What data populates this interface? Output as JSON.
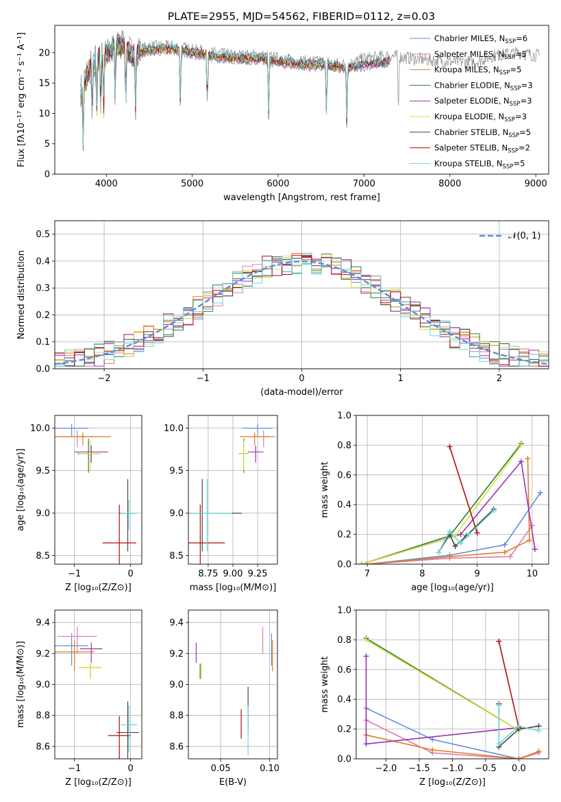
{
  "figure": {
    "title": "PLATE=2955, MJD=54562, FIBERID=0112, z=0.03"
  },
  "colors": {
    "chabrier_miles": "#5b8ddb",
    "salpeter_miles": "#e07aa5",
    "kroupa_miles": "#e07b22",
    "chabrier_elodie": "#2e7d32",
    "salpeter_elodie": "#9b30b0",
    "kroupa_elodie": "#d6e23a",
    "chabrier_stelib": "#444444",
    "salpeter_stelib": "#b00c0c",
    "kroupa_stelib": "#6fd4d8",
    "gauss": "#5b8ddb",
    "grid": "#b0b0b0"
  },
  "models": [
    {
      "key": "chabrier_miles",
      "label": "Chabrier MILES, N",
      "sub": "SSP",
      "val": "=6"
    },
    {
      "key": "salpeter_miles",
      "label": "Salpeter MILES, N",
      "sub": "SSP",
      "val": "=5"
    },
    {
      "key": "kroupa_miles",
      "label": "Kroupa MILES, N",
      "sub": "SSP",
      "val": "=5"
    },
    {
      "key": "chabrier_elodie",
      "label": "Chabrier ELODIE, N",
      "sub": "SSP",
      "val": "=3"
    },
    {
      "key": "salpeter_elodie",
      "label": "Salpeter ELODIE, N",
      "sub": "SSP",
      "val": "=3"
    },
    {
      "key": "kroupa_elodie",
      "label": "Kroupa ELODIE, N",
      "sub": "SSP",
      "val": "=3"
    },
    {
      "key": "chabrier_stelib",
      "label": "Chabrier STELIB, N",
      "sub": "SSP",
      "val": "=5"
    },
    {
      "key": "salpeter_stelib",
      "label": "Salpeter STELIB, N",
      "sub": "SSP",
      "val": "=2"
    },
    {
      "key": "kroupa_stelib",
      "label": "Kroupa STELIB, N",
      "sub": "SSP",
      "val": "=5"
    }
  ],
  "chart_data": [
    {
      "id": "spectrum",
      "type": "line",
      "xlabel": "wavelength [Angstrom, rest frame]",
      "ylabel": "Flux [fλ10⁻¹⁷ erg cm⁻² s⁻¹ A⁻¹]",
      "xlim": [
        3400,
        9150
      ],
      "ylim": [
        0,
        24.5
      ],
      "xticks": [
        4000,
        5000,
        6000,
        7000,
        8000,
        9000
      ],
      "yticks": [
        0,
        5,
        10,
        15,
        20
      ],
      "observed_points": [
        [
          3700,
          14
        ],
        [
          3800,
          18
        ],
        [
          3900,
          19.5
        ],
        [
          4000,
          20
        ],
        [
          4100,
          21
        ],
        [
          4200,
          22
        ],
        [
          4300,
          20
        ],
        [
          4500,
          21
        ],
        [
          4800,
          21
        ],
        [
          5000,
          20.5
        ],
        [
          5200,
          20
        ],
        [
          5500,
          19.5
        ],
        [
          5800,
          19.5
        ],
        [
          6000,
          19
        ],
        [
          6300,
          18.5
        ],
        [
          6500,
          18.5
        ],
        [
          6800,
          18
        ],
        [
          7000,
          19
        ],
        [
          7300,
          19.5
        ],
        [
          7600,
          19
        ],
        [
          8000,
          18.5
        ],
        [
          8300,
          18.5
        ],
        [
          8500,
          19.5
        ],
        [
          8800,
          20
        ],
        [
          9050,
          19.5
        ]
      ],
      "model_points": [
        [
          3700,
          13
        ],
        [
          3800,
          17
        ],
        [
          3900,
          19
        ],
        [
          4000,
          20
        ],
        [
          4100,
          21
        ],
        [
          4200,
          21
        ],
        [
          4300,
          19.5
        ],
        [
          4500,
          20.5
        ],
        [
          4800,
          20.5
        ],
        [
          5000,
          20
        ],
        [
          5200,
          19.5
        ],
        [
          5500,
          19
        ],
        [
          5800,
          19
        ],
        [
          6000,
          18.5
        ],
        [
          6300,
          18
        ],
        [
          6500,
          18
        ],
        [
          6800,
          17.5
        ],
        [
          7000,
          18
        ],
        [
          7300,
          18.5
        ]
      ],
      "absorption_lines": [
        3730,
        3835,
        3889,
        3934,
        3970,
        4102,
        4227,
        4340,
        4861,
        5175,
        5890,
        6563,
        6800,
        7400
      ]
    },
    {
      "id": "residuals",
      "type": "histogram",
      "xlabel": "(data-model)/error",
      "ylabel": "Normed distribution",
      "xlim": [
        -2.5,
        2.5
      ],
      "ylim": [
        0,
        0.55
      ],
      "xticks": [
        -2,
        -1,
        0,
        1,
        2
      ],
      "yticks": [
        0.0,
        0.1,
        0.2,
        0.3,
        0.4,
        0.5
      ],
      "legend": "𝒩(0, 1)",
      "bin_width": 0.1
    },
    {
      "id": "age_vs_Z",
      "type": "scatter",
      "xlabel": "Z [log₁₀(Z/Z⊙)]",
      "ylabel": "age  [log₁₀(age/yr)]",
      "xlim": [
        -1.35,
        0.2
      ],
      "ylim": [
        8.4,
        10.15
      ],
      "xticks": [
        -1,
        0
      ],
      "yticks": [
        8.5,
        9.0,
        9.5,
        10.0
      ],
      "points": [
        {
          "m": "chabrier_miles",
          "x": -1.05,
          "y": 10.0,
          "xe": 0.3,
          "ye": 0.1
        },
        {
          "m": "salpeter_miles",
          "x": -0.95,
          "y": 9.9,
          "xe": 0.35,
          "ye": 0.15
        },
        {
          "m": "kroupa_miles",
          "x": -0.85,
          "y": 9.9,
          "xe": 0.5,
          "ye": 0.1
        },
        {
          "m": "chabrier_elodie",
          "x": -0.75,
          "y": 9.7,
          "xe": 0.2,
          "ye": 0.35
        },
        {
          "m": "salpeter_elodie",
          "x": -0.7,
          "y": 9.72,
          "xe": 0.3,
          "ye": 0.15
        },
        {
          "m": "kroupa_elodie",
          "x": -0.72,
          "y": 9.7,
          "xe": 0.2,
          "ye": 0.3
        },
        {
          "m": "chabrier_stelib",
          "x": -0.05,
          "y": 9.0,
          "xe": 0.15,
          "ye": 0.8
        },
        {
          "m": "salpeter_stelib",
          "x": -0.2,
          "y": 8.65,
          "xe": 0.3,
          "ye": 0.9
        },
        {
          "m": "kroupa_stelib",
          "x": -0.03,
          "y": 9.0,
          "xe": 0.15,
          "ye": 0.3
        }
      ]
    },
    {
      "id": "age_vs_mass",
      "type": "scatter",
      "xlabel": "mass [log₁₀(M/M⊙)]",
      "ylabel": "",
      "xlim": [
        8.55,
        9.45
      ],
      "ylim": [
        8.4,
        10.15
      ],
      "xticks": [
        8.75,
        9.0,
        9.25
      ],
      "tick_labels": [
        "8.75",
        "9.00",
        "9.25"
      ],
      "yticks": [
        8.5,
        9.0,
        9.5,
        10.0
      ],
      "points": [
        {
          "m": "chabrier_miles",
          "x": 9.25,
          "y": 10.0,
          "xe": 0.15,
          "ye": 0.1
        },
        {
          "m": "salpeter_miles",
          "x": 9.31,
          "y": 9.9,
          "xe": 0.12,
          "ye": 0.15
        },
        {
          "m": "kroupa_miles",
          "x": 9.22,
          "y": 9.9,
          "xe": 0.15,
          "ye": 0.1
        },
        {
          "m": "chabrier_elodie",
          "x": 9.11,
          "y": 9.7,
          "xe": 0.05,
          "ye": 0.35
        },
        {
          "m": "salpeter_elodie",
          "x": 9.23,
          "y": 9.72,
          "xe": 0.08,
          "ye": 0.15
        },
        {
          "m": "kroupa_elodie",
          "x": 9.11,
          "y": 9.7,
          "xe": 0.05,
          "ye": 0.3
        },
        {
          "m": "chabrier_stelib",
          "x": 8.69,
          "y": 9.0,
          "xe": 0.4,
          "ye": 0.8
        },
        {
          "m": "salpeter_stelib",
          "x": 8.67,
          "y": 8.65,
          "xe": 0.25,
          "ye": 0.9
        },
        {
          "m": "kroupa_stelib",
          "x": 8.74,
          "y": 9.0,
          "xe": 0.25,
          "ye": 0.8
        }
      ]
    },
    {
      "id": "weight_vs_age",
      "type": "line",
      "xlabel": "age  [log₁₀(age/yr)]",
      "ylabel": "mass weight",
      "xlim": [
        6.8,
        10.3
      ],
      "ylim": [
        0,
        1.0
      ],
      "xticks": [
        7,
        8,
        9,
        10
      ],
      "yticks": [
        0.0,
        0.2,
        0.4,
        0.6,
        0.8,
        1.0
      ],
      "series": [
        {
          "m": "chabrier_miles",
          "x": [
            7.0,
            8.5,
            9.5,
            10.15
          ],
          "y": [
            0.0,
            0.06,
            0.13,
            0.48
          ]
        },
        {
          "m": "salpeter_miles",
          "x": [
            7.0,
            8.5,
            9.6,
            10.0
          ],
          "y": [
            0.0,
            0.04,
            0.05,
            0.26
          ]
        },
        {
          "m": "kroupa_miles",
          "x": [
            7.0,
            8.5,
            9.5,
            9.95,
            9.92
          ],
          "y": [
            0.0,
            0.05,
            0.08,
            0.16,
            0.71
          ]
        },
        {
          "m": "chabrier_elodie",
          "x": [
            6.9,
            8.5,
            9.8
          ],
          "y": [
            0.0,
            0.19,
            0.81
          ]
        },
        {
          "m": "salpeter_elodie",
          "x": [
            6.9,
            8.7,
            9.8,
            10.05
          ],
          "y": [
            0.0,
            0.2,
            0.69,
            0.1
          ]
        },
        {
          "m": "kroupa_elodie",
          "x": [
            6.9,
            8.6,
            9.8
          ],
          "y": [
            0.0,
            0.19,
            0.8
          ]
        },
        {
          "m": "chabrier_stelib",
          "x": [
            8.3,
            8.5,
            8.6,
            8.8,
            9.3
          ],
          "y": [
            0.08,
            0.2,
            0.12,
            0.19,
            0.37
          ]
        },
        {
          "m": "salpeter_stelib",
          "x": [
            8.5,
            9.0
          ],
          "y": [
            0.79,
            0.21
          ]
        },
        {
          "m": "kroupa_stelib",
          "x": [
            8.3,
            8.5,
            8.7,
            8.85,
            9.3
          ],
          "y": [
            0.08,
            0.22,
            0.14,
            0.2,
            0.36
          ]
        }
      ]
    },
    {
      "id": "mass_vs_Z",
      "type": "scatter",
      "xlabel": "Z [log₁₀(Z/Z⊙)]",
      "ylabel": "mass [log₁₀(M/M⊙)]",
      "xlim": [
        -1.35,
        0.2
      ],
      "ylim": [
        8.52,
        9.48
      ],
      "xticks": [
        -1,
        0
      ],
      "yticks": [
        8.6,
        8.8,
        9.0,
        9.2,
        9.4
      ],
      "points": [
        {
          "m": "chabrier_miles",
          "x": -1.05,
          "y": 9.25,
          "xe": 0.3,
          "ye": 0.16
        },
        {
          "m": "salpeter_miles",
          "x": -0.95,
          "y": 9.31,
          "xe": 0.35,
          "ye": 0.12
        },
        {
          "m": "kroupa_miles",
          "x": -1.0,
          "y": 9.21,
          "xe": 0.35,
          "ye": 0.15
        },
        {
          "m": "chabrier_elodie",
          "x": -0.72,
          "y": 9.11,
          "xe": 0.2,
          "ye": 0.05
        },
        {
          "m": "salpeter_elodie",
          "x": -0.7,
          "y": 9.23,
          "xe": 0.2,
          "ye": 0.08
        },
        {
          "m": "kroupa_elodie",
          "x": -0.72,
          "y": 9.11,
          "xe": 0.2,
          "ye": 0.05
        },
        {
          "m": "chabrier_stelib",
          "x": -0.05,
          "y": 8.69,
          "xe": 0.2,
          "ye": 0.4
        },
        {
          "m": "salpeter_stelib",
          "x": -0.2,
          "y": 8.67,
          "xe": 0.2,
          "ye": 0.25
        },
        {
          "m": "kroupa_stelib",
          "x": -0.03,
          "y": 8.74,
          "xe": 0.15,
          "ye": 0.25
        }
      ]
    },
    {
      "id": "mass_vs_ebv",
      "type": "scatter",
      "xlabel": "E(B-V)",
      "ylabel": "",
      "xlim": [
        0.017,
        0.108
      ],
      "ylim": [
        8.52,
        9.48
      ],
      "xticks": [
        0.05,
        0.1
      ],
      "tick_labels": [
        "0.05",
        "0.10"
      ],
      "yticks": [
        8.6,
        8.8,
        9.0,
        9.2,
        9.4
      ],
      "points": [
        {
          "m": "chabrier_miles",
          "x": 0.102,
          "y": 9.25,
          "xe": 0,
          "ye": 0.16
        },
        {
          "m": "salpeter_miles",
          "x": 0.093,
          "y": 9.31,
          "xe": 0,
          "ye": 0.12
        },
        {
          "m": "kroupa_miles",
          "x": 0.103,
          "y": 9.21,
          "xe": 0,
          "ye": 0.15
        },
        {
          "m": "chabrier_elodie",
          "x": 0.029,
          "y": 9.11,
          "xe": 0,
          "ye": 0.05
        },
        {
          "m": "salpeter_elodie",
          "x": 0.025,
          "y": 9.23,
          "xe": 0,
          "ye": 0.08
        },
        {
          "m": "kroupa_elodie",
          "x": 0.03,
          "y": 9.11,
          "xe": 0,
          "ye": 0.05
        },
        {
          "m": "chabrier_stelib",
          "x": 0.078,
          "y": 8.87,
          "xe": 0,
          "ye": 0.23
        },
        {
          "m": "salpeter_stelib",
          "x": 0.071,
          "y": 8.77,
          "xe": 0,
          "ye": 0.14
        },
        {
          "m": "kroupa_stelib",
          "x": 0.078,
          "y": 8.73,
          "xe": 0,
          "ye": 0.27
        }
      ]
    },
    {
      "id": "weight_vs_Z",
      "type": "line",
      "xlabel": "Z [log₁₀(Z/Z⊙)]",
      "ylabel": "mass weight",
      "xlim": [
        -2.45,
        0.45
      ],
      "ylim": [
        0,
        1.0
      ],
      "xticks": [
        -2.0,
        -1.5,
        -1.0,
        -0.5,
        0.0
      ],
      "tick_labels": [
        "−2.0",
        "−1.5",
        "−1.0",
        "−0.5",
        "0.0"
      ],
      "yticks": [
        0.0,
        0.2,
        0.4,
        0.6,
        0.8,
        1.0
      ],
      "series": [
        {
          "m": "chabrier_miles",
          "x": [
            -2.3,
            -1.3,
            0.0,
            0.3
          ],
          "y": [
            0.34,
            0.13,
            0.0,
            0.05
          ]
        },
        {
          "m": "salpeter_miles",
          "x": [
            -2.3,
            -1.3,
            0.0,
            0.3
          ],
          "y": [
            0.26,
            0.04,
            0.0,
            0.04
          ]
        },
        {
          "m": "kroupa_miles",
          "x": [
            -2.3,
            -1.3,
            0.0,
            0.3
          ],
          "y": [
            0.16,
            0.06,
            0.0,
            0.05
          ]
        },
        {
          "m": "chabrier_elodie",
          "x": [
            -2.3,
            0.0
          ],
          "y": [
            0.81,
            0.19
          ]
        },
        {
          "m": "salpeter_elodie",
          "x": [
            -2.3,
            -2.3,
            0.0
          ],
          "y": [
            0.69,
            0.1,
            0.21
          ]
        },
        {
          "m": "kroupa_elodie",
          "x": [
            -2.3,
            0.0
          ],
          "y": [
            0.8,
            0.19
          ]
        },
        {
          "m": "chabrier_stelib",
          "x": [
            -0.3,
            -0.3,
            0.0,
            0.3
          ],
          "y": [
            0.37,
            0.08,
            0.2,
            0.22
          ]
        },
        {
          "m": "salpeter_stelib",
          "x": [
            -0.3,
            0.0
          ],
          "y": [
            0.79,
            0.21
          ]
        },
        {
          "m": "kroupa_stelib",
          "x": [
            -0.3,
            -0.3,
            0.0,
            0.3
          ],
          "y": [
            0.36,
            0.1,
            0.22,
            0.19
          ]
        }
      ]
    }
  ]
}
